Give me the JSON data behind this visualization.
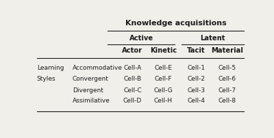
{
  "title": "Knowledge acquisitions",
  "active_label": "Active",
  "latent_label": "Latent",
  "level3_headers": [
    "Actor",
    "Kinetic",
    "Tacit",
    "Material"
  ],
  "learning_label": [
    "Learning",
    "Styles"
  ],
  "row_labels": [
    "Accommodative",
    "Convergent",
    "Divergent",
    "Assimilative"
  ],
  "rows": [
    [
      "Cell-A",
      "Cell-E",
      "Cell-1",
      "Cell-5"
    ],
    [
      "Cell-B",
      "Cell-F",
      "Cell-2",
      "Cell-6"
    ],
    [
      "Cell-C",
      "Cell-G",
      "Cell-3",
      "Cell-7"
    ],
    [
      "Cell-D",
      "Cell-H",
      "Cell-4",
      "Cell-8"
    ]
  ],
  "bg_color": "#f0efea",
  "text_color": "#1a1a1a",
  "title_fontsize": 8.0,
  "header_fontsize": 7.2,
  "cell_fontsize": 6.5
}
